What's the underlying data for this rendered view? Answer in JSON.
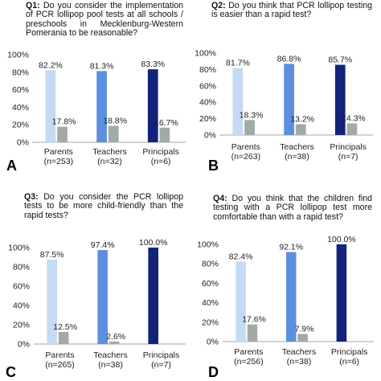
{
  "panels": [
    {
      "letter": "A",
      "q_label": "Q1:",
      "question": "Do you consider the implementation of PCR lollipop pool tests at all schools / preschools in Mecklenburg-Western Pomerania to be reasonable?"
    },
    {
      "letter": "B",
      "q_label": "Q2:",
      "question": "Do you think that PCR lollipop testing is easier than a rapid test?"
    },
    {
      "letter": "C",
      "q_label": "Q3:",
      "question": "Do you consider the PCR lollipop tests to be more child-friendly than the rapid tests?"
    },
    {
      "letter": "D",
      "q_label": "Q4:",
      "question": "Do you think that the children find testing with a PCR lollipop test more comfortable than with a rapid test?"
    }
  ],
  "colors": {
    "parents": "#c5daf4",
    "teachers": "#5c8fe0",
    "principals": "#14237a",
    "no": "#a2aaa6",
    "axis": "#a6a6a6",
    "gridline": "#d9d9d9"
  },
  "chart_data": [
    {
      "type": "bar",
      "title": "",
      "ylim": [
        0,
        100
      ],
      "yticks": [
        "0%",
        "20%",
        "40%",
        "60%",
        "80%",
        "100%"
      ],
      "categories": [
        "Parents",
        "Teachers",
        "Principals"
      ],
      "sublabels": [
        "(n=253)",
        "(n=32)",
        "(n=6)"
      ],
      "series": [
        {
          "values": [
            82.2,
            81.3,
            83.3
          ],
          "labels": [
            "82.2%",
            "81.3%",
            "83.3%"
          ]
        },
        {
          "values": [
            17.8,
            18.8,
            16.7
          ],
          "labels": [
            "17.8%",
            "18.8%",
            "16.7%"
          ]
        }
      ]
    },
    {
      "type": "bar",
      "title": "",
      "ylim": [
        0,
        100
      ],
      "yticks": [
        "0%",
        "20%",
        "40%",
        "60%",
        "80%",
        "100%"
      ],
      "categories": [
        "Parents",
        "Teachers",
        "Principals"
      ],
      "sublabels": [
        "(n=263)",
        "(n=38)",
        "(n=7)"
      ],
      "series": [
        {
          "values": [
            81.7,
            86.8,
            85.7
          ],
          "labels": [
            "81.7%",
            "86.8%",
            "85.7%"
          ]
        },
        {
          "values": [
            18.3,
            13.2,
            14.3
          ],
          "labels": [
            "18.3%",
            "13.2%",
            "14.3%"
          ]
        }
      ]
    },
    {
      "type": "bar",
      "title": "",
      "ylim": [
        0,
        100
      ],
      "yticks": [
        "0%",
        "20%",
        "40%",
        "60%",
        "80%",
        "100%"
      ],
      "categories": [
        "Parents",
        "Teachers",
        "Principals"
      ],
      "sublabels": [
        "(n=265)",
        "(n=38)",
        "(n=7)"
      ],
      "series": [
        {
          "values": [
            87.5,
            97.4,
            100.0
          ],
          "labels": [
            "87.5%",
            "97.4%",
            "100.0%"
          ]
        },
        {
          "values": [
            12.5,
            2.6,
            null
          ],
          "labels": [
            "12.5%",
            "2.6%",
            null
          ]
        }
      ]
    },
    {
      "type": "bar",
      "title": "",
      "ylim": [
        0,
        100
      ],
      "yticks": [
        "0%",
        "20%",
        "40%",
        "60%",
        "80%",
        "100%"
      ],
      "categories": [
        "Parents",
        "Teachers",
        "Principals"
      ],
      "sublabels": [
        "(n=256)",
        "(n=38)",
        "(n=6)"
      ],
      "series": [
        {
          "values": [
            82.4,
            92.1,
            100.0
          ],
          "labels": [
            "82.4%",
            "92.1%",
            "100.0%"
          ]
        },
        {
          "values": [
            17.6,
            7.9,
            null
          ],
          "labels": [
            "17.6%",
            "7.9%",
            null
          ]
        }
      ]
    }
  ]
}
